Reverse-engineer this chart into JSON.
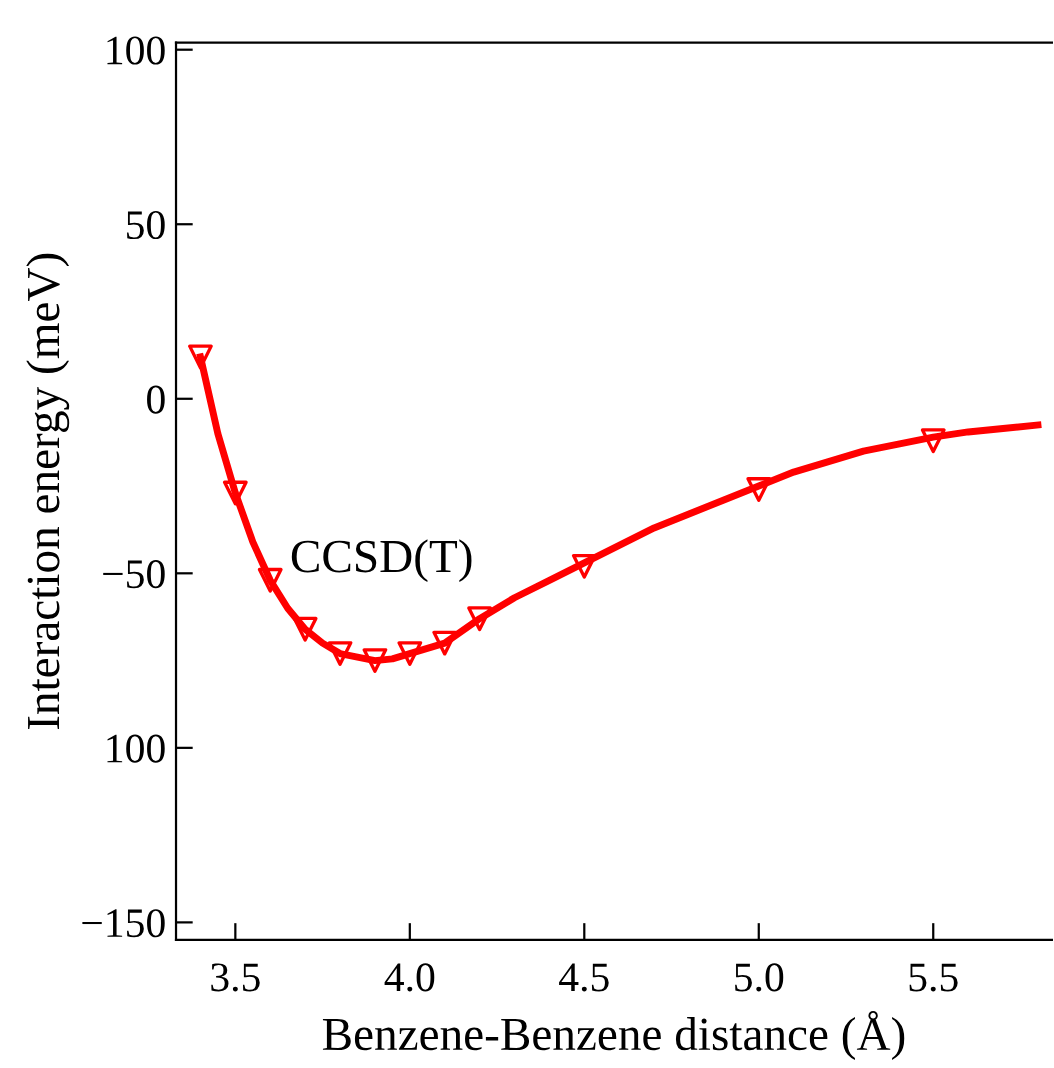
{
  "chart_data": {
    "type": "line",
    "xlabel": "Benzene-Benzene distance (Å)",
    "ylabel": "Interaction energy (meV)",
    "xlim": [
      3.33,
      5.84
    ],
    "ylim": [
      -155,
      102
    ],
    "xticks": [
      3.5,
      {
        "value": 4.0,
        "label": "4.0"
      },
      4.5,
      {
        "value": 5.0,
        "label": "5.0"
      },
      5.5
    ],
    "yticks": [
      100,
      50,
      0,
      -50,
      {
        "value": -100,
        "label": "100"
      },
      -150
    ],
    "grid": false,
    "legend": false,
    "annotations": [
      "CCSD(T)"
    ],
    "series": [
      {
        "color": "#ff0000",
        "marker": "none",
        "line_style": "solid",
        "x": [
          3.4,
          3.45,
          3.5,
          3.55,
          3.6,
          3.65,
          3.7,
          3.75,
          3.8,
          3.85,
          3.9,
          3.95,
          4.0,
          4.1,
          4.2,
          4.3,
          4.4,
          4.5,
          4.6,
          4.7,
          4.8,
          4.9,
          5.0,
          5.1,
          5.2,
          5.3,
          5.4,
          5.5,
          5.6,
          5.7,
          5.8
        ],
        "values": [
          12,
          -10,
          -27,
          -41,
          -52,
          -60,
          -66,
          -70,
          -73,
          -74,
          -75,
          -74.5,
          -73,
          -70,
          -63,
          -57,
          -52,
          -47,
          -42,
          -37,
          -33,
          -29,
          -25,
          -21,
          -18,
          -15,
          -13,
          -11,
          -9.5,
          -8.5,
          -7.5
        ]
      },
      {
        "type": "scatter",
        "color": "#ff0000",
        "marker": "triangle_down",
        "x": [
          3.4,
          3.5,
          3.6,
          3.7,
          3.8,
          3.9,
          4.0,
          4.1,
          4.2,
          4.5,
          5.0,
          5.5
        ],
        "values": [
          12,
          -27,
          -52,
          -66,
          -73,
          -75,
          -73,
          -70,
          -63,
          -48,
          -26,
          -12
        ]
      }
    ]
  }
}
